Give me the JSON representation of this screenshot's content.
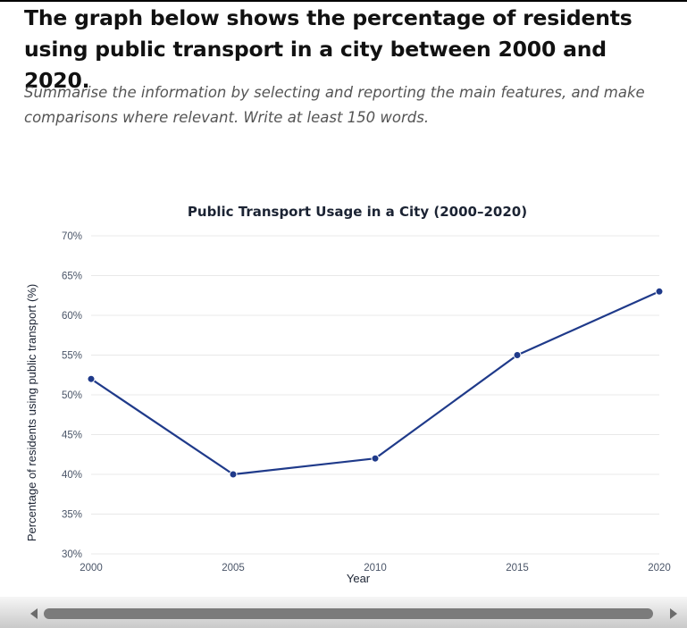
{
  "prompt": {
    "heading": "The graph below shows the percentage of residents using public transport in a city between 2000 and 2020.",
    "instruction": "Summarise the information by selecting and reporting the main features, and make comparisons where relevant. Write at least 150 words."
  },
  "chart_data": {
    "type": "line",
    "title": "Public Transport Usage in a City (2000–2020)",
    "xlabel": "Year",
    "ylabel": "Percentage of residents using public transport (%)",
    "x": [
      2000,
      2005,
      2010,
      2015,
      2020
    ],
    "x_tick_labels": [
      "2000",
      "2005",
      "2010",
      "2015",
      "2020"
    ],
    "ylim": [
      30,
      70
    ],
    "y_ticks": [
      30,
      35,
      40,
      45,
      50,
      55,
      60,
      65,
      70
    ],
    "y_tick_labels": [
      "30%",
      "35%",
      "40%",
      "45%",
      "50%",
      "55%",
      "60%",
      "65%",
      "70%"
    ],
    "grid": true,
    "legend": "none",
    "series": [
      {
        "name": "Public transport usage",
        "values": [
          52,
          40,
          42,
          55,
          63
        ],
        "color": "#1f3a8a"
      }
    ]
  },
  "scrollbar": {
    "left_arrow_icon": "scroll-left-arrow-icon",
    "right_arrow_icon": "scroll-right-arrow-icon"
  }
}
